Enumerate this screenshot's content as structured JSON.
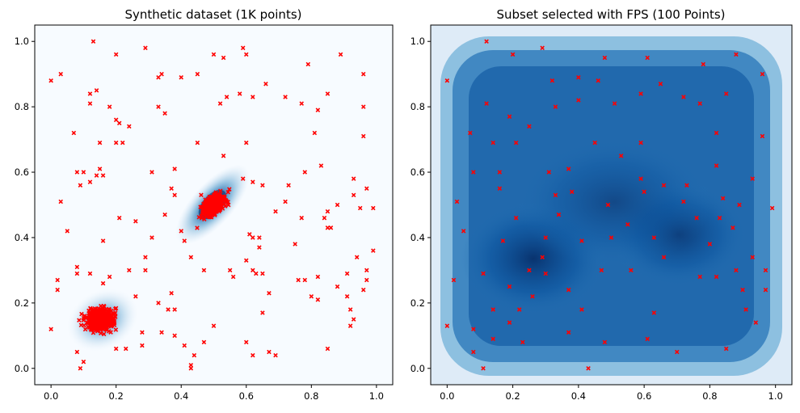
{
  "chart_data": [
    {
      "type": "scatter",
      "title": "Synthetic dataset (1K points)",
      "xlabel": "",
      "ylabel": "",
      "xlim": [
        -0.05,
        1.05
      ],
      "ylim": [
        -0.05,
        1.05
      ],
      "xticks": [
        "0.0",
        "0.2",
        "0.4",
        "0.6",
        "0.8",
        "1.0"
      ],
      "yticks": [
        "0.0",
        "0.2",
        "0.4",
        "0.6",
        "0.8",
        "1.0"
      ],
      "grid": false,
      "background": "density heatmap (Blues)",
      "marker": "x",
      "marker_color": "#ff0000",
      "clusters": [
        {
          "center": [
            0.5,
            0.5
          ],
          "spread": 0.035,
          "shape": "elongated diagonal (positive correlation)"
        },
        {
          "center": [
            0.15,
            0.15
          ],
          "spread": 0.03,
          "shape": "round"
        }
      ],
      "points": [
        [
          0.0,
          0.88
        ],
        [
          0.03,
          0.9
        ],
        [
          0.13,
          1.0
        ],
        [
          0.2,
          0.96
        ],
        [
          0.29,
          0.98
        ],
        [
          0.5,
          0.96
        ],
        [
          0.53,
          0.95
        ],
        [
          0.59,
          0.98
        ],
        [
          0.6,
          0.96
        ],
        [
          0.66,
          0.87
        ],
        [
          0.79,
          0.93
        ],
        [
          0.89,
          0.96
        ],
        [
          0.96,
          0.9
        ],
        [
          0.96,
          0.8
        ],
        [
          0.34,
          0.9
        ],
        [
          0.33,
          0.89
        ],
        [
          0.4,
          0.89
        ],
        [
          0.45,
          0.9
        ],
        [
          0.58,
          0.84
        ],
        [
          0.62,
          0.83
        ],
        [
          0.54,
          0.83
        ],
        [
          0.52,
          0.81
        ],
        [
          0.72,
          0.83
        ],
        [
          0.77,
          0.81
        ],
        [
          0.82,
          0.79
        ],
        [
          0.85,
          0.84
        ],
        [
          0.12,
          0.84
        ],
        [
          0.14,
          0.85
        ],
        [
          0.12,
          0.81
        ],
        [
          0.18,
          0.8
        ],
        [
          0.2,
          0.76
        ],
        [
          0.24,
          0.74
        ],
        [
          0.21,
          0.75
        ],
        [
          0.33,
          0.8
        ],
        [
          0.35,
          0.78
        ],
        [
          0.07,
          0.72
        ],
        [
          0.15,
          0.69
        ],
        [
          0.2,
          0.69
        ],
        [
          0.22,
          0.69
        ],
        [
          0.45,
          0.69
        ],
        [
          0.6,
          0.69
        ],
        [
          0.81,
          0.72
        ],
        [
          0.96,
          0.71
        ],
        [
          0.53,
          0.65
        ],
        [
          0.38,
          0.61
        ],
        [
          0.31,
          0.6
        ],
        [
          0.15,
          0.61
        ],
        [
          0.08,
          0.6
        ],
        [
          0.1,
          0.6
        ],
        [
          0.16,
          0.59
        ],
        [
          0.14,
          0.59
        ],
        [
          0.09,
          0.56
        ],
        [
          0.12,
          0.57
        ],
        [
          0.03,
          0.51
        ],
        [
          0.38,
          0.53
        ],
        [
          0.37,
          0.55
        ],
        [
          0.59,
          0.58
        ],
        [
          0.62,
          0.57
        ],
        [
          0.65,
          0.56
        ],
        [
          0.72,
          0.51
        ],
        [
          0.73,
          0.56
        ],
        [
          0.78,
          0.6
        ],
        [
          0.83,
          0.62
        ],
        [
          0.88,
          0.5
        ],
        [
          0.85,
          0.48
        ],
        [
          0.93,
          0.58
        ],
        [
          0.93,
          0.53
        ],
        [
          0.97,
          0.55
        ],
        [
          0.95,
          0.49
        ],
        [
          0.99,
          0.49
        ],
        [
          0.69,
          0.48
        ],
        [
          0.77,
          0.46
        ],
        [
          0.84,
          0.46
        ],
        [
          0.85,
          0.43
        ],
        [
          0.86,
          0.43
        ],
        [
          0.75,
          0.38
        ],
        [
          0.64,
          0.37
        ],
        [
          0.64,
          0.4
        ],
        [
          0.61,
          0.41
        ],
        [
          0.62,
          0.4
        ],
        [
          0.6,
          0.33
        ],
        [
          0.63,
          0.29
        ],
        [
          0.62,
          0.3
        ],
        [
          0.55,
          0.3
        ],
        [
          0.56,
          0.28
        ],
        [
          0.47,
          0.3
        ],
        [
          0.43,
          0.34
        ],
        [
          0.41,
          0.39
        ],
        [
          0.4,
          0.42
        ],
        [
          0.35,
          0.47
        ],
        [
          0.31,
          0.4
        ],
        [
          0.26,
          0.45
        ],
        [
          0.21,
          0.46
        ],
        [
          0.05,
          0.42
        ],
        [
          0.16,
          0.39
        ],
        [
          0.29,
          0.34
        ],
        [
          0.29,
          0.3
        ],
        [
          0.24,
          0.3
        ],
        [
          0.18,
          0.28
        ],
        [
          0.12,
          0.29
        ],
        [
          0.08,
          0.31
        ],
        [
          0.08,
          0.29
        ],
        [
          0.02,
          0.27
        ],
        [
          0.02,
          0.24
        ],
        [
          0.16,
          0.26
        ],
        [
          0.26,
          0.22
        ],
        [
          0.37,
          0.23
        ],
        [
          0.38,
          0.18
        ],
        [
          0.38,
          0.1
        ],
        [
          0.47,
          0.08
        ],
        [
          0.5,
          0.13
        ],
        [
          0.43,
          0.0
        ],
        [
          0.6,
          0.08
        ],
        [
          0.62,
          0.04
        ],
        [
          0.69,
          0.04
        ],
        [
          0.65,
          0.17
        ],
        [
          0.67,
          0.23
        ],
        [
          0.65,
          0.29
        ],
        [
          0.76,
          0.27
        ],
        [
          0.8,
          0.22
        ],
        [
          0.82,
          0.21
        ],
        [
          0.85,
          0.06
        ],
        [
          0.88,
          0.25
        ],
        [
          0.91,
          0.29
        ],
        [
          0.91,
          0.22
        ],
        [
          0.92,
          0.18
        ],
        [
          0.92,
          0.13
        ],
        [
          0.93,
          0.15
        ],
        [
          0.94,
          0.34
        ],
        [
          0.96,
          0.24
        ],
        [
          0.97,
          0.27
        ],
        [
          0.97,
          0.3
        ],
        [
          0.82,
          0.28
        ],
        [
          0.78,
          0.27
        ],
        [
          0.99,
          0.36
        ],
        [
          0.0,
          0.12
        ],
        [
          0.08,
          0.05
        ],
        [
          0.1,
          0.02
        ],
        [
          0.09,
          0.0
        ],
        [
          0.2,
          0.06
        ],
        [
          0.23,
          0.06
        ],
        [
          0.28,
          0.07
        ],
        [
          0.33,
          0.2
        ],
        [
          0.43,
          0.01
        ],
        [
          0.41,
          0.07
        ],
        [
          0.44,
          0.04
        ],
        [
          0.36,
          0.18
        ],
        [
          0.28,
          0.11
        ],
        [
          0.34,
          0.11
        ],
        [
          0.67,
          0.05
        ]
      ]
    },
    {
      "type": "scatter",
      "title": "Subset selected with FPS (100 Points)",
      "xlabel": "",
      "ylabel": "",
      "xlim": [
        -0.05,
        1.05
      ],
      "ylim": [
        -0.05,
        1.05
      ],
      "xticks": [
        "0.0",
        "0.2",
        "0.4",
        "0.6",
        "0.8",
        "1.0"
      ],
      "yticks": [
        "0.0",
        "0.2",
        "0.4",
        "0.6",
        "0.8",
        "1.0"
      ],
      "grid": false,
      "background": "density heatmap (Blues)",
      "marker": "x",
      "marker_color": "#ff0000",
      "points": [
        [
          0.0,
          0.88
        ],
        [
          0.12,
          1.0
        ],
        [
          0.2,
          0.96
        ],
        [
          0.29,
          0.98
        ],
        [
          0.48,
          0.95
        ],
        [
          0.61,
          0.95
        ],
        [
          0.88,
          0.96
        ],
        [
          0.96,
          0.9
        ],
        [
          0.78,
          0.93
        ],
        [
          0.32,
          0.88
        ],
        [
          0.4,
          0.89
        ],
        [
          0.46,
          0.88
        ],
        [
          0.65,
          0.87
        ],
        [
          0.12,
          0.81
        ],
        [
          0.19,
          0.77
        ],
        [
          0.33,
          0.8
        ],
        [
          0.4,
          0.82
        ],
        [
          0.51,
          0.81
        ],
        [
          0.59,
          0.84
        ],
        [
          0.72,
          0.83
        ],
        [
          0.77,
          0.81
        ],
        [
          0.85,
          0.84
        ],
        [
          0.07,
          0.72
        ],
        [
          0.14,
          0.69
        ],
        [
          0.21,
          0.69
        ],
        [
          0.25,
          0.74
        ],
        [
          0.45,
          0.69
        ],
        [
          0.59,
          0.69
        ],
        [
          0.82,
          0.72
        ],
        [
          0.96,
          0.71
        ],
        [
          0.53,
          0.65
        ],
        [
          0.08,
          0.6
        ],
        [
          0.16,
          0.6
        ],
        [
          0.31,
          0.6
        ],
        [
          0.37,
          0.61
        ],
        [
          0.59,
          0.58
        ],
        [
          0.82,
          0.62
        ],
        [
          0.93,
          0.58
        ],
        [
          0.03,
          0.51
        ],
        [
          0.16,
          0.55
        ],
        [
          0.33,
          0.53
        ],
        [
          0.38,
          0.54
        ],
        [
          0.49,
          0.5
        ],
        [
          0.6,
          0.54
        ],
        [
          0.66,
          0.56
        ],
        [
          0.73,
          0.56
        ],
        [
          0.72,
          0.51
        ],
        [
          0.84,
          0.52
        ],
        [
          0.89,
          0.5
        ],
        [
          0.99,
          0.49
        ],
        [
          0.05,
          0.42
        ],
        [
          0.17,
          0.39
        ],
        [
          0.21,
          0.46
        ],
        [
          0.34,
          0.47
        ],
        [
          0.3,
          0.4
        ],
        [
          0.41,
          0.39
        ],
        [
          0.5,
          0.4
        ],
        [
          0.55,
          0.44
        ],
        [
          0.63,
          0.4
        ],
        [
          0.76,
          0.46
        ],
        [
          0.83,
          0.46
        ],
        [
          0.87,
          0.43
        ],
        [
          0.8,
          0.38
        ],
        [
          0.93,
          0.34
        ],
        [
          0.02,
          0.27
        ],
        [
          0.11,
          0.29
        ],
        [
          0.19,
          0.25
        ],
        [
          0.25,
          0.3
        ],
        [
          0.29,
          0.34
        ],
        [
          0.3,
          0.29
        ],
        [
          0.47,
          0.3
        ],
        [
          0.56,
          0.3
        ],
        [
          0.66,
          0.34
        ],
        [
          0.77,
          0.28
        ],
        [
          0.82,
          0.28
        ],
        [
          0.88,
          0.3
        ],
        [
          0.97,
          0.3
        ],
        [
          0.37,
          0.24
        ],
        [
          0.26,
          0.22
        ],
        [
          0.22,
          0.18
        ],
        [
          0.14,
          0.18
        ],
        [
          0.0,
          0.13
        ],
        [
          0.08,
          0.12
        ],
        [
          0.19,
          0.14
        ],
        [
          0.37,
          0.11
        ],
        [
          0.41,
          0.18
        ],
        [
          0.61,
          0.09
        ],
        [
          0.63,
          0.17
        ],
        [
          0.9,
          0.24
        ],
        [
          0.91,
          0.18
        ],
        [
          0.94,
          0.14
        ],
        [
          0.97,
          0.24
        ],
        [
          0.08,
          0.05
        ],
        [
          0.11,
          0.0
        ],
        [
          0.14,
          0.09
        ],
        [
          0.23,
          0.08
        ],
        [
          0.43,
          0.0
        ],
        [
          0.48,
          0.08
        ],
        [
          0.7,
          0.05
        ],
        [
          0.85,
          0.06
        ]
      ]
    }
  ]
}
